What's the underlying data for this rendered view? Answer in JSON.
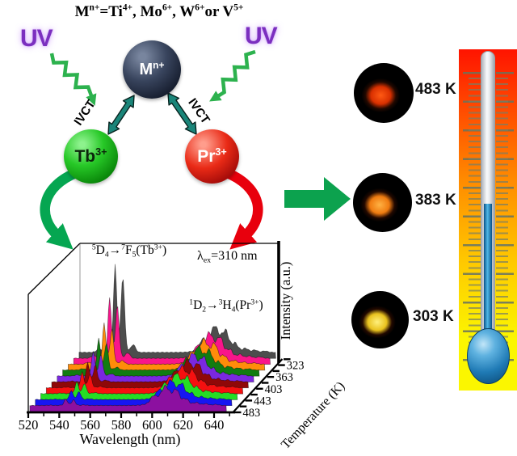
{
  "scheme": {
    "title": "M^{n+}=Ti^{4+}, Mo^{6+}, W^{6+}or V^{5+}",
    "uv_left": "UV",
    "uv_right": "UV",
    "host_ion": "M^{n+}",
    "donor_ion": "Tb^{3+}",
    "acceptor_ion": "Pr^{3+}",
    "ivct_left": "IVCT",
    "ivct_right": "IVCT",
    "colors": {
      "uv_text": "#7b2fbf",
      "wavy_arrow": "#2db24e",
      "ivct_arrow": "#1a8579",
      "m_sphere": "#2a3550",
      "tb_sphere": "#18b418",
      "pr_sphere": "#dd1507",
      "tb_curved_arrow": "#05a651",
      "pr_curved_arrow": "#e8000d",
      "big_arrow": "#0ca24e"
    }
  },
  "photos": [
    {
      "label": "483 K",
      "glow_inner": "#ff5a14",
      "glow_outer": "#d93000"
    },
    {
      "label": "383 K",
      "glow_inner": "#ffb244",
      "glow_outer": "#ef7b10"
    },
    {
      "label": "303 K",
      "glow_inner": "#fff07d",
      "glow_outer": "#e9c21e"
    }
  ],
  "thermometer": {
    "scale_top_color": "#ff1400",
    "scale_mid_color": "#ff8a00",
    "scale_bottom_color": "#fbf600",
    "liquid_color": "#4fb8e8",
    "bulb_color": "#1f7ab5"
  },
  "chart_data": {
    "type": "area",
    "projection": "3d-waterfall",
    "title": "",
    "xlabel": "Wavelength (nm)",
    "ylabel": "Intensity (a.u.)",
    "zlabel": "Temperature (K)",
    "xlim": [
      520,
      650
    ],
    "x_ticks": [
      520,
      540,
      560,
      580,
      600,
      620,
      640
    ],
    "z_tick_labels": [
      "323",
      "363",
      "403",
      "443",
      "483"
    ],
    "annotations": {
      "tb_transition": "^{5}D_{4}→^{7}F_{5}(Tb^{3+})",
      "excitation": "λ_{ex}=310 nm",
      "pr_transition": "^{1}D_{2}→^{3}H_{4}(Pr^{3+})"
    },
    "tb_peak_nm": 545,
    "pr_band_nm": 610,
    "series": [
      {
        "temperature_K": 303,
        "color": "#4d4d4d",
        "tb_amp": 95,
        "pr_amp": 30
      },
      {
        "temperature_K": 323,
        "color": "#f9158b",
        "tb_amp": 66,
        "pr_amp": 29
      },
      {
        "temperature_K": 343,
        "color": "#ff8c0a",
        "tb_amp": 44,
        "pr_amp": 28
      },
      {
        "temperature_K": 363,
        "color": "#117c11",
        "tb_amp": 34,
        "pr_amp": 27
      },
      {
        "temperature_K": 383,
        "color": "#7a28e0",
        "tb_amp": 27,
        "pr_amp": 26
      },
      {
        "temperature_K": 403,
        "color": "#8f0808",
        "tb_amp": 21,
        "pr_amp": 25
      },
      {
        "temperature_K": 423,
        "color": "#f51010",
        "tb_amp": 17,
        "pr_amp": 24
      },
      {
        "temperature_K": 443,
        "color": "#25dd25",
        "tb_amp": 13,
        "pr_amp": 23
      },
      {
        "temperature_K": 463,
        "color": "#1616f2",
        "tb_amp": 10,
        "pr_amp": 22
      },
      {
        "temperature_K": 483,
        "color": "#8c10a0",
        "tb_amp": 7,
        "pr_amp": 22
      }
    ]
  }
}
